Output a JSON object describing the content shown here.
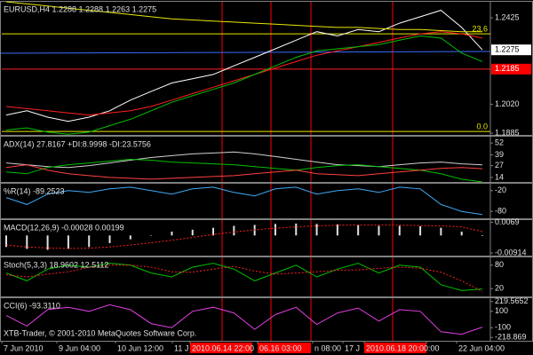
{
  "chart_data": [
    {
      "type": "line",
      "title": "EURUSD,H4  1.2288 1.2288 1.2263 1.2275",
      "ylim": [
        1.1877,
        1.25
      ],
      "yticks": [
        1.2425,
        {
          "value": 1.202,
          "label": "1.2020"
        },
        1.1885
      ],
      "current_price": 1.2275,
      "marked_price": 1.2185,
      "level_labels": [
        "23.6",
        "0.0"
      ],
      "level_prices": [
        1.235,
        1.1893
      ],
      "series": [
        {
          "color": "#ffffff",
          "values": [
            1.197,
            1.199,
            1.196,
            1.194,
            1.196,
            1.199,
            1.204,
            1.208,
            1.212,
            1.214,
            1.216,
            1.22,
            1.224,
            1.228,
            1.232,
            1.236,
            1.234,
            1.237,
            1.236,
            1.24,
            1.243,
            1.246,
            1.238,
            1.2275
          ]
        },
        {
          "color": "#e8e800",
          "values": [
            1.25,
            1.249,
            1.248,
            1.247,
            1.246,
            1.245,
            1.244,
            1.243,
            1.242,
            1.2415,
            1.241,
            1.2405,
            1.24,
            1.2395,
            1.239,
            1.2385,
            1.238,
            1.238,
            1.2375,
            1.237,
            1.237,
            1.2365,
            1.236,
            1.236
          ]
        },
        {
          "color": "#ff2020",
          "values": [
            1.201,
            1.2,
            1.199,
            1.198,
            1.197,
            1.198,
            1.199,
            1.201,
            1.204,
            1.207,
            1.21,
            1.213,
            1.216,
            1.219,
            1.222,
            1.225,
            1.227,
            1.229,
            1.231,
            1.233,
            1.235,
            1.236,
            1.235,
            1.233
          ]
        },
        {
          "color": "#00c000",
          "values": [
            1.19,
            1.191,
            1.189,
            1.188,
            1.189,
            1.192,
            1.195,
            1.199,
            1.203,
            1.206,
            1.209,
            1.212,
            1.216,
            1.22,
            1.224,
            1.227,
            1.228,
            1.229,
            1.23,
            1.232,
            1.234,
            1.233,
            1.226,
            1.222
          ]
        }
      ]
    },
    {
      "type": "line",
      "title": "ADX(14) 27.8167 +DI:8.9998 -DI:23.5756",
      "ylim": [
        9,
        59
      ],
      "yticks": [
        52,
        39,
        27,
        14
      ],
      "series": [
        {
          "color": "#d0d0d0",
          "values": [
            30,
            28,
            26,
            25,
            27,
            30,
            33,
            36,
            38,
            40,
            41,
            42,
            40,
            37,
            34,
            31,
            28,
            27,
            26,
            28,
            30,
            31,
            29,
            27.8
          ]
        },
        {
          "color": "#00c000",
          "values": [
            20,
            18,
            25,
            28,
            30,
            32,
            34,
            33,
            31,
            30,
            29,
            28,
            26,
            24,
            22,
            25,
            27,
            28,
            26,
            24,
            22,
            18,
            12,
            9
          ]
        },
        {
          "color": "#ff4040",
          "values": [
            25,
            28,
            22,
            18,
            16,
            14,
            13,
            12,
            13,
            14,
            15,
            16,
            18,
            20,
            22,
            18,
            17,
            16,
            18,
            20,
            22,
            24,
            25,
            23.6
          ]
        }
      ]
    },
    {
      "type": "line",
      "title": "%R(14) -89.2523",
      "ylim": [
        -100,
        0
      ],
      "yticks": [
        -20,
        -80
      ],
      "series": [
        {
          "color": "#3fa9f5",
          "values": [
            -40,
            -60,
            -30,
            -20,
            -25,
            -15,
            -10,
            -20,
            -30,
            -15,
            -10,
            -25,
            -35,
            -15,
            -10,
            -30,
            -20,
            -15,
            -25,
            -10,
            -15,
            -60,
            -80,
            -89
          ]
        }
      ]
    },
    {
      "type": "line",
      "title": "MACD(12,26,9) -0.00028 0.00199",
      "ylim": [
        -0.0105,
        0.008
      ],
      "yticks": [
        0.0069,
        -0.00914
      ],
      "series": [
        {
          "color": "#e0e0e0",
          "style": "histogram",
          "values": [
            -0.006,
            -0.007,
            -0.0075,
            -0.007,
            -0.006,
            -0.004,
            -0.002,
            0.0,
            0.002,
            0.003,
            0.004,
            0.005,
            0.0055,
            0.006,
            0.0062,
            0.006,
            0.0058,
            0.0055,
            0.005,
            0.005,
            0.0048,
            0.004,
            0.002,
            -0.0003
          ]
        },
        {
          "color": "#ff2020",
          "dash": true,
          "values": [
            -0.005,
            -0.006,
            -0.0065,
            -0.0068,
            -0.0066,
            -0.006,
            -0.005,
            -0.0038,
            -0.0025,
            -0.001,
            0.0005,
            0.0018,
            0.0029,
            0.0038,
            0.0045,
            0.005,
            0.0053,
            0.0054,
            0.0054,
            0.0053,
            0.0052,
            0.005,
            0.0045,
            0.002
          ]
        }
      ]
    },
    {
      "type": "line",
      "title": "Stoch(5,3,3) 18.9602 12.5112",
      "ylim": [
        0,
        100
      ],
      "yticks": [
        80,
        20
      ],
      "series": [
        {
          "color": "#00c000",
          "values": [
            60,
            40,
            70,
            80,
            75,
            85,
            80,
            60,
            50,
            75,
            85,
            70,
            40,
            60,
            80,
            50,
            70,
            85,
            60,
            80,
            75,
            30,
            15,
            19
          ]
        },
        {
          "color": "#ff2020",
          "dash": true,
          "values": [
            55,
            50,
            57,
            63,
            75,
            80,
            80,
            75,
            63,
            62,
            70,
            77,
            65,
            57,
            60,
            63,
            67,
            68,
            72,
            75,
            72,
            62,
            40,
            12.5
          ]
        }
      ]
    },
    {
      "type": "line",
      "title": "CCI(6) -93.3110",
      "ylim": [
        -260,
        260
      ],
      "yticks": [
        219.5652,
        100,
        -100,
        -218.869
      ],
      "series": [
        {
          "color": "#e040e0",
          "values": [
            50,
            -80,
            120,
            150,
            100,
            180,
            120,
            -50,
            -100,
            100,
            150,
            80,
            -120,
            60,
            150,
            -60,
            80,
            140,
            -20,
            120,
            100,
            -150,
            -180,
            -93
          ]
        }
      ]
    }
  ],
  "watermark": "XTB-Trader, © 2001-2010 MetaQuotes Software Corp.",
  "time_axis": [
    "7 Jun 2010",
    "9 Jun 04:00",
    "10 Jun 12:00",
    "11 J",
    "2010.06.14 22:00",
    "06.16 03:00",
    "n 08:00",
    "17 J",
    "2010.06.18 20:00",
    ":00",
    "22 Jun 04:00"
  ]
}
